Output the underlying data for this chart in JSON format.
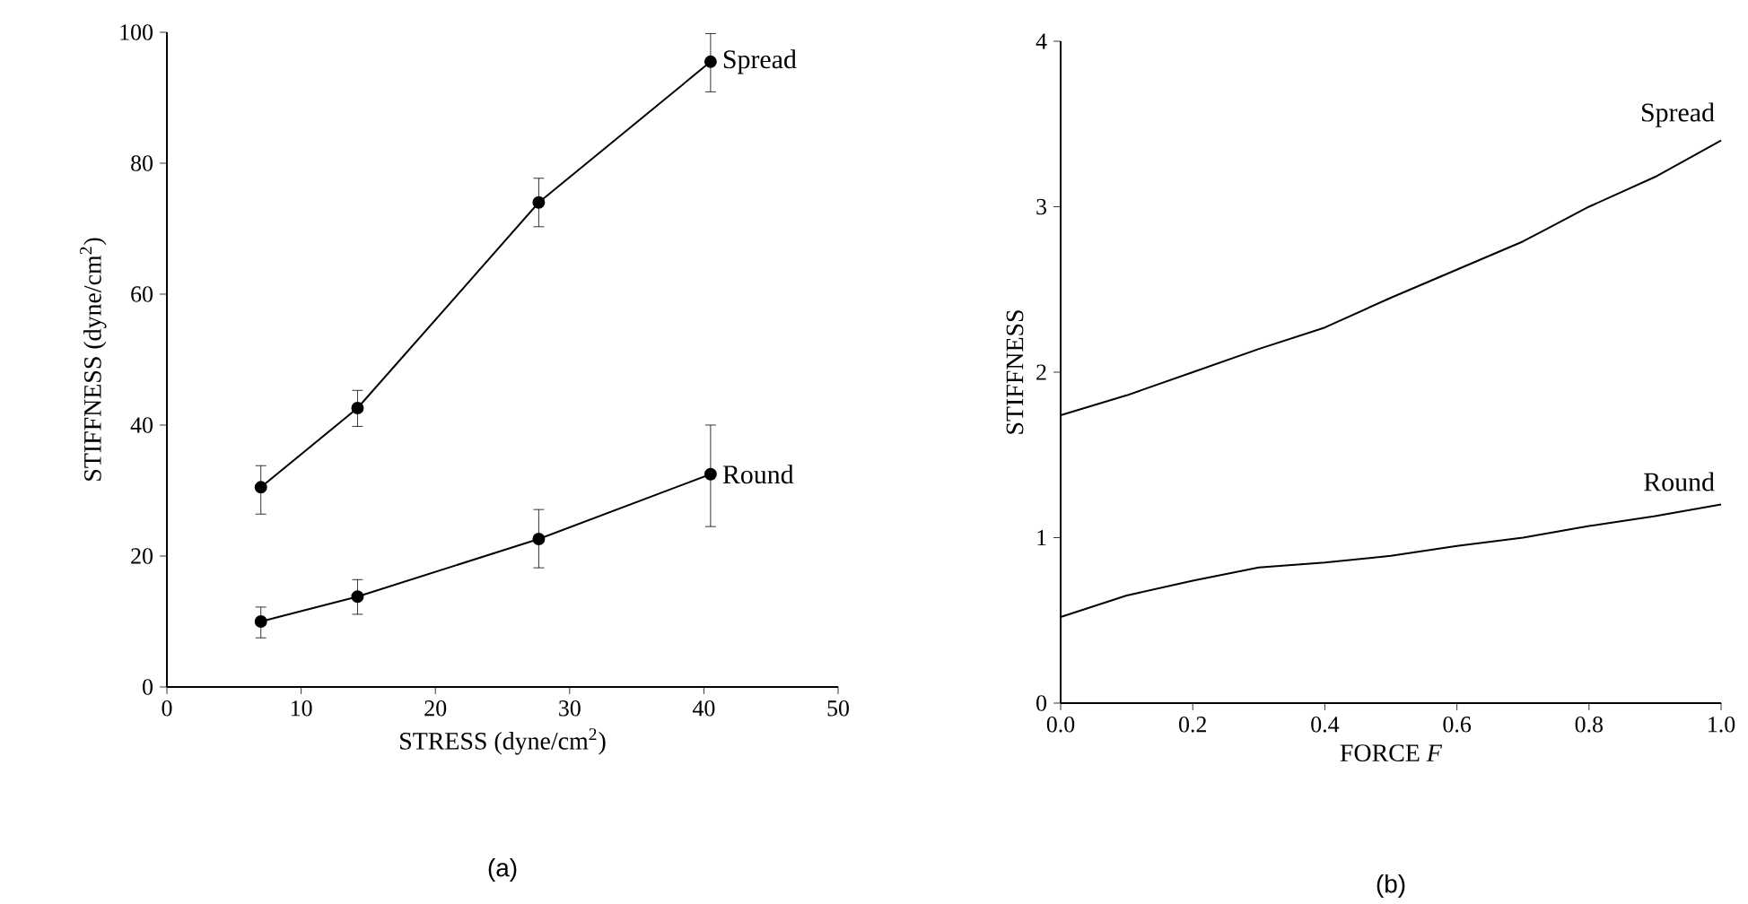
{
  "chart_data": [
    {
      "type": "line",
      "xlabel": "STRESS (dyne/cm$^{2}$)",
      "ylabel": "STIFFNESS (dyne/cm$^{2}$)",
      "annotations": [
        "(a)"
      ],
      "xlim": [
        0,
        50
      ],
      "xticks": [
        0,
        10,
        20,
        30,
        40,
        50
      ],
      "ylim": [
        0,
        100
      ],
      "yticks": [
        0,
        20,
        40,
        60,
        80,
        100
      ],
      "marker": "circle",
      "line_style": "solid",
      "grid": false,
      "series": [
        {
          "name": "Spread",
          "color": "#000000",
          "x": [
            7.0,
            14.2,
            27.7,
            40.5
          ],
          "values": [
            30.5,
            42.6,
            74,
            95.5
          ],
          "errors": [
            [
              26.4,
              33.8
            ],
            [
              39.8,
              45.3
            ],
            [
              70.3,
              77.7
            ],
            [
              90.9,
              99.8
            ]
          ]
        },
        {
          "name": "Round",
          "color": "#000000",
          "x": [
            7.0,
            14.2,
            27.7,
            40.5
          ],
          "values": [
            10,
            13.8,
            22.6,
            32.5
          ],
          "errors": [
            [
              7.5,
              12.2
            ],
            [
              11.1,
              16.4
            ],
            [
              18.2,
              27.1
            ],
            [
              24.5,
              40
            ]
          ]
        }
      ]
    },
    {
      "type": "line",
      "xlabel": "FORCE *F*",
      "ylabel": "STIFFNESS",
      "annotations": [
        "(b)"
      ],
      "xlim": [
        0,
        1
      ],
      "xticks": [
        {
          "value": 0,
          "label": "0.0"
        },
        0.2,
        0.4,
        0.6,
        0.8,
        {
          "value": 1,
          "label": "1.0"
        }
      ],
      "ylim": [
        0,
        4
      ],
      "yticks": [
        0,
        1,
        2,
        3,
        4
      ],
      "marker": "none",
      "line_style": "solid",
      "grid": false,
      "series": [
        {
          "name": "Spread",
          "color": "#000000",
          "x": [
            0,
            0.1,
            0.2,
            0.3,
            0.4,
            0.5,
            0.6,
            0.7,
            0.8,
            0.9,
            1.0
          ],
          "values": [
            1.74,
            1.86,
            2.0,
            2.14,
            2.27,
            2.45,
            2.62,
            2.79,
            3.0,
            3.18,
            3.4
          ]
        },
        {
          "name": "Round",
          "color": "#000000",
          "x": [
            0,
            0.1,
            0.2,
            0.3,
            0.4,
            0.5,
            0.6,
            0.7,
            0.8,
            0.9,
            1.0
          ],
          "values": [
            0.52,
            0.65,
            0.74,
            0.82,
            0.85,
            0.89,
            0.95,
            1.0,
            1.07,
            1.13,
            1.2
          ]
        }
      ]
    }
  ]
}
